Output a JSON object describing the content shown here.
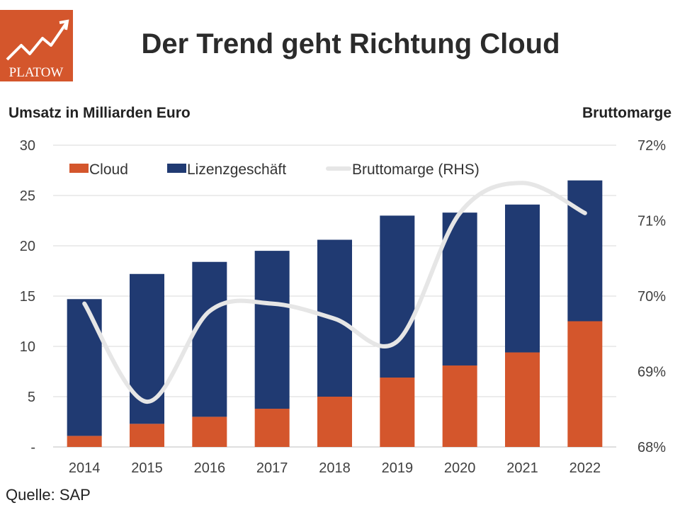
{
  "logo": {
    "text": "PLATOW",
    "background": "#d4562c"
  },
  "chart_data": {
    "type": "bar",
    "title": "Der Trend geht Richtung Cloud",
    "ylabel": "Umsatz in Milliarden Euro",
    "y2label": "Bruttomarge",
    "xlabel": "",
    "stacked": true,
    "categories": [
      "2014",
      "2015",
      "2016",
      "2017",
      "2018",
      "2019",
      "2020",
      "2021",
      "2022"
    ],
    "series": [
      {
        "name": "Cloud",
        "type": "bar",
        "color": "#d4562c",
        "values": [
          1.1,
          2.3,
          3.0,
          3.8,
          5.0,
          6.9,
          8.1,
          9.4,
          12.5
        ]
      },
      {
        "name": "Lizenzgeschäft",
        "type": "bar",
        "color": "#203a72",
        "values": [
          13.6,
          14.9,
          15.4,
          15.7,
          15.6,
          16.1,
          15.2,
          14.7,
          14.0
        ]
      },
      {
        "name": "Bruttomarge (RHS)",
        "type": "line",
        "axis": "right",
        "color": "#e6e6e6",
        "values": [
          0.699,
          0.686,
          0.698,
          0.699,
          0.697,
          0.694,
          0.711,
          0.715,
          0.711
        ]
      }
    ],
    "ylim": [
      0,
      30
    ],
    "y2lim": [
      0.68,
      0.72
    ],
    "yticks": [
      "-",
      "5",
      "10",
      "15",
      "20",
      "25",
      "30"
    ],
    "y2ticks": [
      "68%",
      "69%",
      "70%",
      "71%",
      "72%"
    ],
    "grid": true,
    "legend": "top"
  },
  "source": "Quelle: SAP"
}
